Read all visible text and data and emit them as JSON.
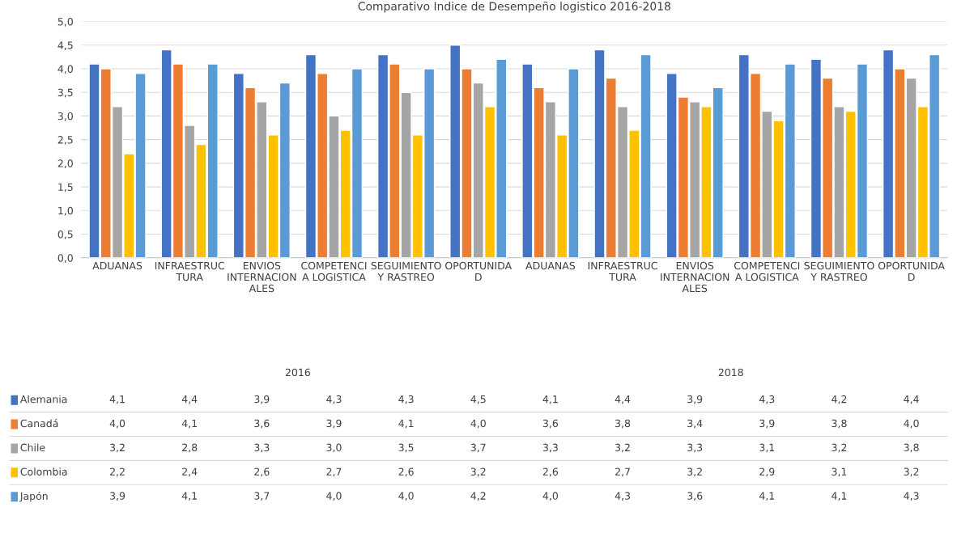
{
  "chart_data": {
    "type": "bar",
    "title": "Comparativo Indice de Desempeño logistico 2016-2018",
    "categories": [
      "ADUANAS",
      "INFRAESTRUC\nTURA",
      "ENVIOS\nINTERNACION\nALES",
      "COMPETENCI\nA LOGISTICA",
      "SEGUIMIENTO\nY RASTREO",
      "OPORTUNIDA\nD",
      "ADUANAS",
      "INFRAESTRUC\nTURA",
      "ENVIOS\nINTERNACION\nALES",
      "COMPETENCI\nA LOGISTICA",
      "SEGUIMIENTO\nY RASTREO",
      "OPORTUNIDA\nD"
    ],
    "annotations": [
      "2016",
      "2018"
    ],
    "series": [
      {
        "name": "Alemania",
        "color": "#4472c4",
        "values": [
          4.1,
          4.4,
          3.9,
          4.3,
          4.3,
          4.5,
          4.1,
          4.4,
          3.9,
          4.3,
          4.2,
          4.4
        ],
        "value_labels": [
          "4,1",
          "4,4",
          "3,9",
          "4,3",
          "4,3",
          "4,5",
          "4,1",
          "4,4",
          "3,9",
          "4,3",
          "4,2",
          "4,4"
        ]
      },
      {
        "name": "Canadá",
        "color": "#ed7d31",
        "values": [
          4.0,
          4.1,
          3.6,
          3.9,
          4.1,
          4.0,
          3.6,
          3.8,
          3.4,
          3.9,
          3.8,
          4.0
        ],
        "value_labels": [
          "4,0",
          "4,1",
          "3,6",
          "3,9",
          "4,1",
          "4,0",
          "3,6",
          "3,8",
          "3,4",
          "3,9",
          "3,8",
          "4,0"
        ]
      },
      {
        "name": "Chile",
        "color": "#a5a5a5",
        "values": [
          3.2,
          2.8,
          3.3,
          3.0,
          3.5,
          3.7,
          3.3,
          3.2,
          3.3,
          3.1,
          3.2,
          3.8
        ],
        "value_labels": [
          "3,2",
          "2,8",
          "3,3",
          "3,0",
          "3,5",
          "3,7",
          "3,3",
          "3,2",
          "3,3",
          "3,1",
          "3,2",
          "3,8"
        ]
      },
      {
        "name": "Colombia",
        "color": "#ffc000",
        "values": [
          2.2,
          2.4,
          2.6,
          2.7,
          2.6,
          3.2,
          2.6,
          2.7,
          3.2,
          2.9,
          3.1,
          3.2
        ],
        "value_labels": [
          "2,2",
          "2,4",
          "2,6",
          "2,7",
          "2,6",
          "3,2",
          "2,6",
          "2,7",
          "3,2",
          "2,9",
          "3,1",
          "3,2"
        ]
      },
      {
        "name": "Japón",
        "color": "#5b9bd5",
        "values": [
          3.9,
          4.1,
          3.7,
          4.0,
          4.0,
          4.2,
          4.0,
          4.3,
          3.6,
          4.1,
          4.1,
          4.3
        ],
        "value_labels": [
          "3,9",
          "4,1",
          "3,7",
          "4,0",
          "4,0",
          "4,2",
          "4,0",
          "4,3",
          "3,6",
          "4,1",
          "4,1",
          "4,3"
        ]
      }
    ],
    "ylim": [
      0,
      5
    ],
    "yticks": [
      {
        "value": 0,
        "label": "0,0"
      },
      {
        "value": 0.5,
        "label": "0,5"
      },
      {
        "value": 1,
        "label": "1,0"
      },
      {
        "value": 1.5,
        "label": "1,5"
      },
      {
        "value": 2,
        "label": "2,0"
      },
      {
        "value": 2.5,
        "label": "2,5"
      },
      {
        "value": 3,
        "label": "3,0"
      },
      {
        "value": 3.5,
        "label": "3,5"
      },
      {
        "value": 4,
        "label": "4,0"
      },
      {
        "value": 4.5,
        "label": "4,5"
      },
      {
        "value": 5,
        "label": "5,0"
      }
    ],
    "grid": "y",
    "legend": "bottom"
  }
}
